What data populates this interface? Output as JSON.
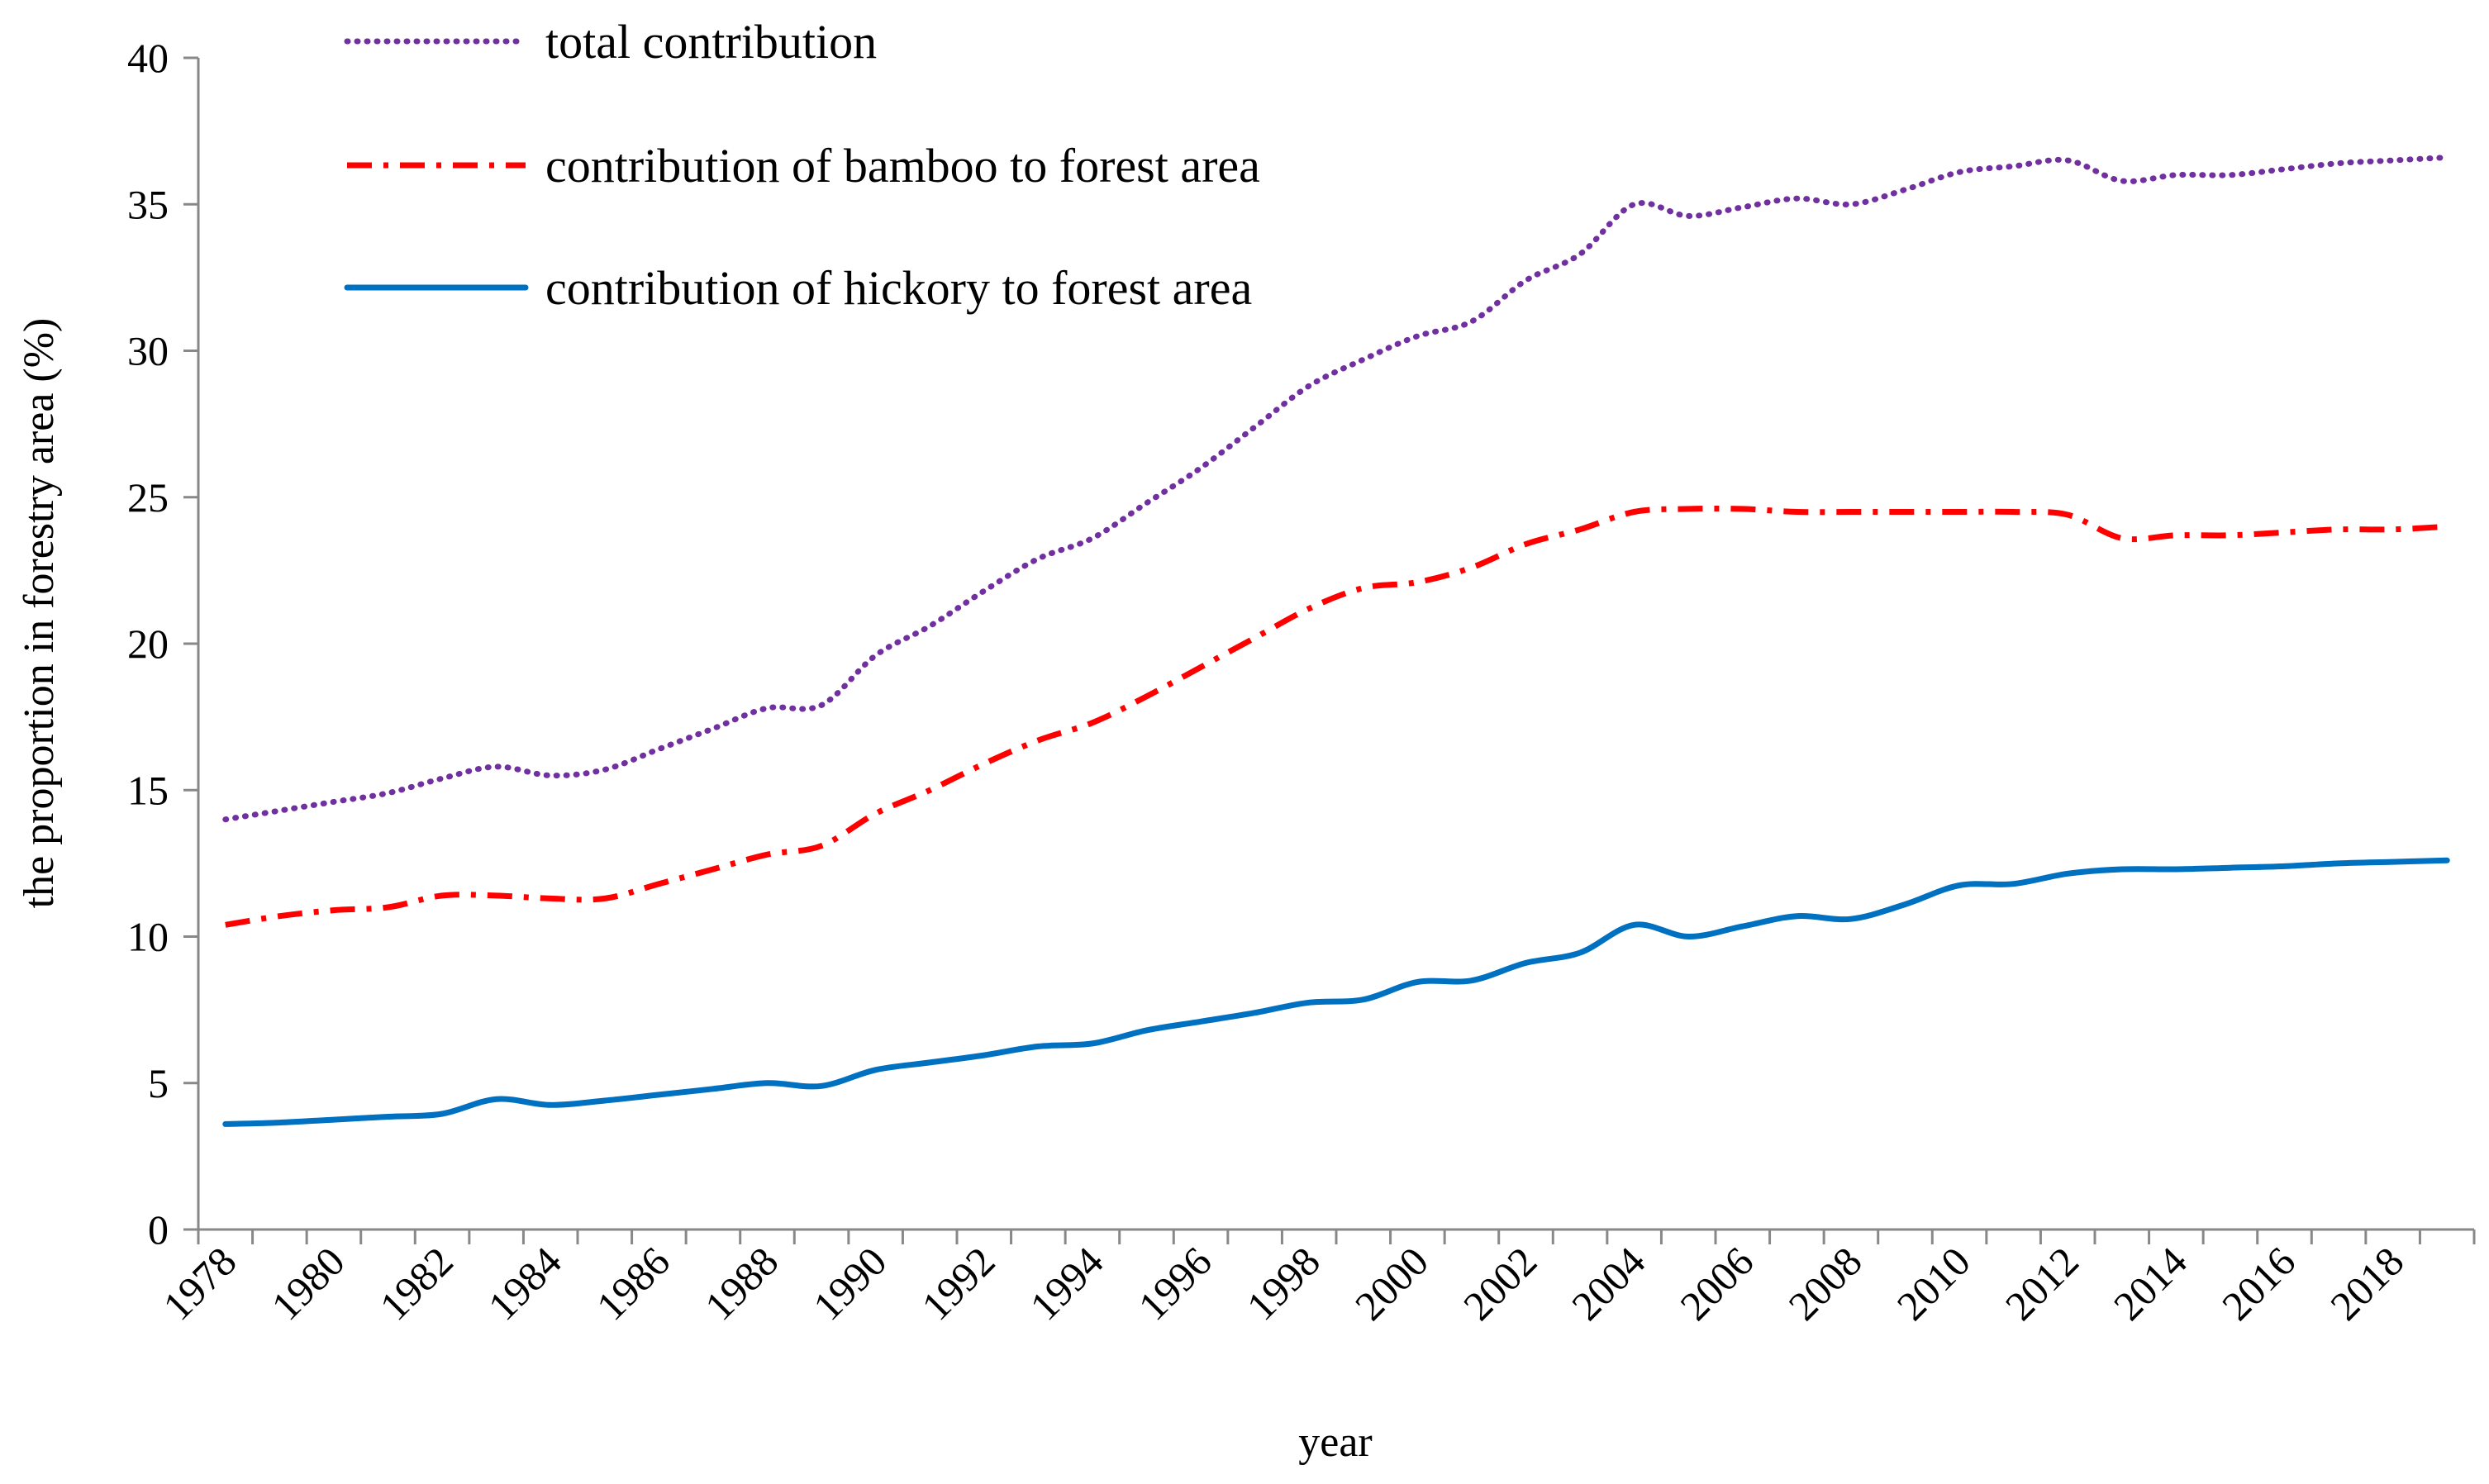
{
  "chart_data": {
    "type": "line",
    "title": "",
    "xlabel": "year",
    "ylabel": "the proportion in forestry area (%)",
    "ylim": [
      0,
      40
    ],
    "yticks": [
      "0",
      "5",
      "10",
      "15",
      "20",
      "25",
      "30",
      "35",
      "40"
    ],
    "xticks": [
      "1978",
      "1980",
      "1982",
      "1984",
      "1986",
      "1988",
      "1990",
      "1992",
      "1994",
      "1996",
      "1998",
      "2000",
      "2002",
      "2004",
      "2006",
      "2008",
      "2010",
      "2012",
      "2014",
      "2016",
      "2018"
    ],
    "x": [
      1978,
      1979,
      1980,
      1981,
      1982,
      1983,
      1984,
      1985,
      1986,
      1987,
      1988,
      1989,
      1990,
      1991,
      1992,
      1993,
      1994,
      1995,
      1996,
      1997,
      1998,
      1999,
      2000,
      2001,
      2002,
      2003,
      2004,
      2005,
      2006,
      2007,
      2008,
      2009,
      2010,
      2011,
      2012,
      2013,
      2014,
      2015,
      2016,
      2017,
      2018,
      2019
    ],
    "grid": false,
    "legend_position": "top-left",
    "series": [
      {
        "name": "total contribution",
        "color": "#7030A0",
        "style": "dotted",
        "values": [
          14.0,
          14.3,
          14.6,
          14.9,
          15.4,
          15.8,
          15.5,
          15.7,
          16.4,
          17.1,
          17.8,
          17.9,
          19.6,
          20.6,
          21.8,
          22.9,
          23.6,
          24.8,
          26.0,
          27.4,
          28.8,
          29.7,
          30.5,
          31.0,
          32.4,
          33.3,
          35.0,
          34.6,
          34.9,
          35.2,
          35.0,
          35.5,
          36.1,
          36.3,
          36.5,
          35.8,
          36.0,
          36.0,
          36.2,
          36.4,
          36.5,
          36.6
        ]
      },
      {
        "name": "contribution of bamboo to forest area",
        "color": "#FF0000",
        "style": "dashdot",
        "values": [
          10.4,
          10.7,
          10.9,
          11.0,
          11.4,
          11.4,
          11.3,
          11.3,
          11.8,
          12.3,
          12.8,
          13.1,
          14.2,
          15.0,
          15.9,
          16.7,
          17.3,
          18.2,
          19.2,
          20.2,
          21.2,
          21.9,
          22.1,
          22.6,
          23.4,
          23.9,
          24.5,
          24.6,
          24.6,
          24.5,
          24.5,
          24.5,
          24.5,
          24.5,
          24.4,
          23.6,
          23.7,
          23.7,
          23.8,
          23.9,
          23.9,
          24.0
        ]
      },
      {
        "name": "contribution of hickory to forest area",
        "color": "#0070C0",
        "style": "solid",
        "values": [
          3.6,
          3.65,
          3.75,
          3.85,
          3.95,
          4.45,
          4.25,
          4.4,
          4.6,
          4.8,
          5.0,
          4.9,
          5.45,
          5.7,
          5.95,
          6.25,
          6.35,
          6.8,
          7.1,
          7.4,
          7.75,
          7.85,
          8.45,
          8.5,
          9.1,
          9.45,
          10.4,
          10.0,
          10.35,
          10.7,
          10.6,
          11.1,
          11.75,
          11.8,
          12.15,
          12.3,
          12.3,
          12.35,
          12.4,
          12.5,
          12.55,
          12.6
        ]
      }
    ]
  }
}
